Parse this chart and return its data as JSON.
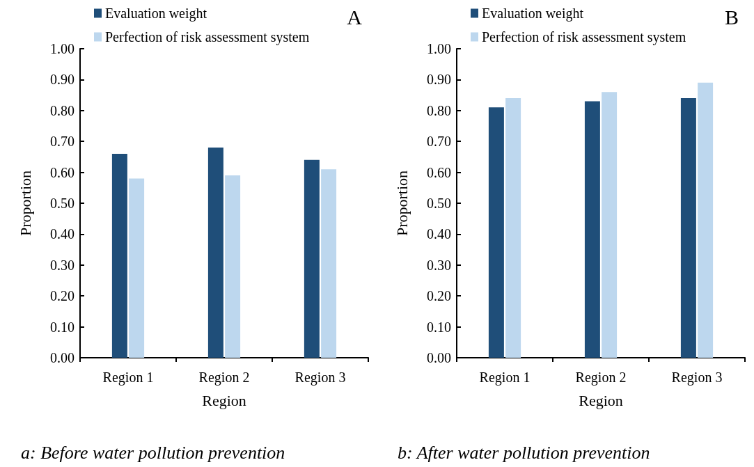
{
  "chart_data": [
    {
      "type": "bar",
      "title": "A",
      "xlabel": "Region",
      "ylabel": "Proportion",
      "categories": [
        "Region 1",
        "Region 2",
        "Region 3"
      ],
      "series": [
        {
          "name": "Evaluation weight",
          "color": "#1f4e79",
          "values": [
            0.66,
            0.68,
            0.64
          ]
        },
        {
          "name": "Perfection of risk assessment system",
          "color": "#bdd7ee",
          "values": [
            0.58,
            0.59,
            0.61
          ]
        }
      ],
      "ylim": [
        0,
        1
      ],
      "yticks": [
        {
          "value": 0,
          "label": "0.00"
        },
        {
          "value": 0.1,
          "label": "0.10"
        },
        {
          "value": 0.2,
          "label": "0.20"
        },
        {
          "value": 0.3,
          "label": "0.30"
        },
        {
          "value": 0.4,
          "label": "0.40"
        },
        {
          "value": 0.5,
          "label": "0.50"
        },
        {
          "value": 0.6,
          "label": "0.60"
        },
        {
          "value": 0.7,
          "label": "0.70"
        },
        {
          "value": 0.8,
          "label": "0.80"
        },
        {
          "value": 0.9,
          "label": "0.90"
        },
        {
          "value": 1,
          "label": "1.00"
        }
      ],
      "legend": "top left",
      "annotations": [
        "a: Before water pollution prevention"
      ]
    },
    {
      "type": "bar",
      "title": "B",
      "xlabel": "Region",
      "ylabel": "Proportion",
      "categories": [
        "Region 1",
        "Region 2",
        "Region 3"
      ],
      "series": [
        {
          "name": "Evaluation weight",
          "color": "#1f4e79",
          "values": [
            0.81,
            0.83,
            0.84
          ]
        },
        {
          "name": "Perfection of risk assessment system",
          "color": "#bdd7ee",
          "values": [
            0.84,
            0.86,
            0.89
          ]
        }
      ],
      "ylim": [
        0,
        1
      ],
      "yticks": [
        {
          "value": 0,
          "label": "0.00"
        },
        {
          "value": 0.1,
          "label": "0.10"
        },
        {
          "value": 0.2,
          "label": "0.20"
        },
        {
          "value": 0.3,
          "label": "0.30"
        },
        {
          "value": 0.4,
          "label": "0.40"
        },
        {
          "value": 0.5,
          "label": "0.50"
        },
        {
          "value": 0.6,
          "label": "0.60"
        },
        {
          "value": 0.7,
          "label": "0.70"
        },
        {
          "value": 0.8,
          "label": "0.80"
        },
        {
          "value": 0.9,
          "label": "0.90"
        },
        {
          "value": 1,
          "label": "1.00"
        }
      ],
      "legend": "top left",
      "annotations": [
        "b: After water pollution prevention"
      ]
    }
  ]
}
